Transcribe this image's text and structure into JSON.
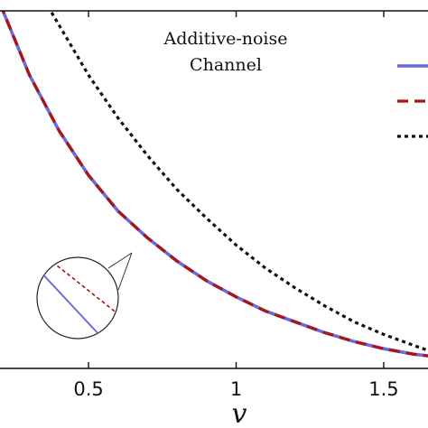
{
  "chart_data": {
    "type": "line",
    "title": "",
    "xlabel": "v",
    "ylabel": "",
    "xlim": [
      0.2,
      1.65
    ],
    "ylim": [
      0,
      1
    ],
    "x_ticks": [
      0.5,
      1,
      1.5
    ],
    "x_tick_labels": [
      "0.5",
      "1",
      "1.5"
    ],
    "grid": false,
    "annotation": [
      "Additive-noise",
      "Channel"
    ],
    "legend": {
      "placement": "right",
      "entries": [
        {
          "style": "solid",
          "color": "#6a6ae0"
        },
        {
          "style": "dashed",
          "color": "#aa1414"
        },
        {
          "style": "dotted",
          "color": "#111111"
        }
      ]
    },
    "series": [
      {
        "style": "solid",
        "color": "#6a6ae0",
        "x": [
          0.2,
          0.3,
          0.4,
          0.5,
          0.6,
          0.7,
          0.8,
          0.9,
          1.0,
          1.1,
          1.2,
          1.3,
          1.4,
          1.5,
          1.6,
          1.65
        ],
        "y": [
          1.02,
          0.82,
          0.665,
          0.54,
          0.44,
          0.365,
          0.3,
          0.245,
          0.2,
          0.16,
          0.13,
          0.1,
          0.075,
          0.055,
          0.04,
          0.035
        ]
      },
      {
        "style": "dashed",
        "color": "#aa1414",
        "x": [
          0.2,
          0.3,
          0.4,
          0.5,
          0.6,
          0.7,
          0.8,
          0.9,
          1.0,
          1.1,
          1.2,
          1.3,
          1.4,
          1.5,
          1.6,
          1.65
        ],
        "y": [
          1.02,
          0.82,
          0.665,
          0.54,
          0.44,
          0.365,
          0.3,
          0.245,
          0.2,
          0.16,
          0.13,
          0.1,
          0.075,
          0.055,
          0.04,
          0.035
        ]
      },
      {
        "style": "dotted",
        "color": "#111111",
        "x": [
          0.35,
          0.4,
          0.5,
          0.6,
          0.7,
          0.8,
          0.9,
          1.0,
          1.1,
          1.2,
          1.3,
          1.4,
          1.5,
          1.6,
          1.65
        ],
        "y": [
          1.03,
          0.96,
          0.82,
          0.7,
          0.595,
          0.5,
          0.42,
          0.345,
          0.28,
          0.225,
          0.175,
          0.13,
          0.095,
          0.065,
          0.05
        ]
      }
    ]
  }
}
